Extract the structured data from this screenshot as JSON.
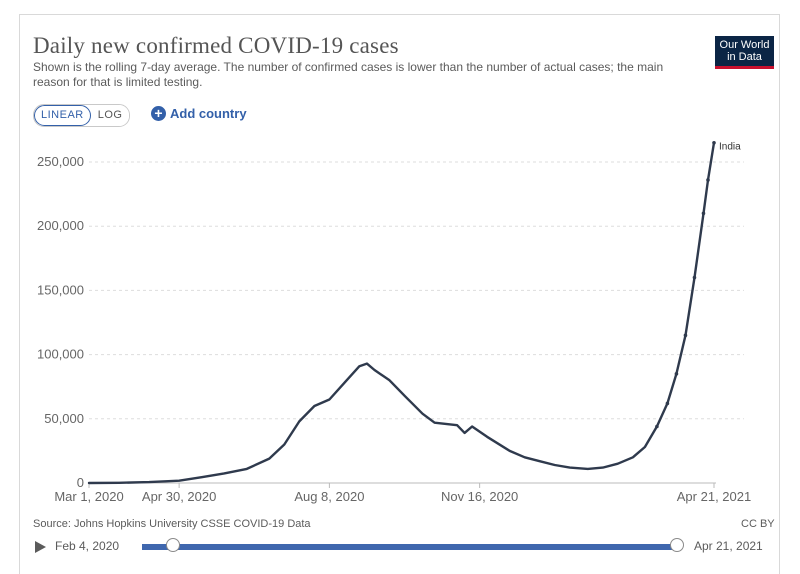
{
  "header": {
    "title": "Daily new confirmed COVID-19 cases",
    "subtitle": "Shown is the rolling 7-day average. The number of confirmed cases is lower than the number of actual cases; the main reason for that is limited testing.",
    "logo_line1": "Our World",
    "logo_line2": "in Data"
  },
  "controls": {
    "scale_linear": "LINEAR",
    "scale_log": "LOG",
    "active_scale": "LINEAR",
    "add_country": "Add country",
    "add_icon": "plus-circle-icon"
  },
  "footer": {
    "source": "Source: Johns Hopkins University CSSE COVID-19 Data",
    "license": "CC BY"
  },
  "timeline": {
    "start_label": "Feb 4, 2020",
    "end_label": "Apr 21, 2021"
  },
  "colors": {
    "line": "#2f3a4d",
    "accent": "#3360a9",
    "grid": "#dddddd",
    "logo_bg": "#0b2545",
    "logo_red": "#c8102e"
  },
  "chart_data": {
    "type": "line",
    "title": "Daily new confirmed COVID-19 cases",
    "xlabel": "",
    "ylabel": "",
    "x_tick_labels": [
      "Mar 1, 2020",
      "Apr 30, 2020",
      "Aug 8, 2020",
      "Nov 16, 2020",
      "Apr 21, 2021"
    ],
    "x_tick_days": [
      0,
      60,
      160,
      260,
      416
    ],
    "y_ticks": [
      0,
      50000,
      100000,
      150000,
      200000,
      250000
    ],
    "y_tick_labels": [
      "0",
      "50,000",
      "100,000",
      "150,000",
      "200,000",
      "250,000"
    ],
    "ylim": [
      0,
      250000
    ],
    "xlim_days": [
      0,
      416
    ],
    "x_unit": "days since Mar 1, 2020",
    "grid": "horizontal dashed",
    "series": [
      {
        "name": "India",
        "points": [
          [
            0,
            0
          ],
          [
            20,
            150
          ],
          [
            40,
            700
          ],
          [
            60,
            1800
          ],
          [
            75,
            4500
          ],
          [
            90,
            7500
          ],
          [
            105,
            11000
          ],
          [
            120,
            19000
          ],
          [
            130,
            30000
          ],
          [
            140,
            48000
          ],
          [
            150,
            60000
          ],
          [
            160,
            65000
          ],
          [
            170,
            78000
          ],
          [
            180,
            91000
          ],
          [
            185,
            93000
          ],
          [
            190,
            88000
          ],
          [
            200,
            80000
          ],
          [
            210,
            68000
          ],
          [
            222,
            54000
          ],
          [
            230,
            47000
          ],
          [
            245,
            45000
          ],
          [
            250,
            39000
          ],
          [
            255,
            44000
          ],
          [
            265,
            36000
          ],
          [
            280,
            25000
          ],
          [
            290,
            20000
          ],
          [
            300,
            17000
          ],
          [
            310,
            14000
          ],
          [
            320,
            12000
          ],
          [
            332,
            11000
          ],
          [
            342,
            12000
          ],
          [
            352,
            15000
          ],
          [
            362,
            20000
          ],
          [
            370,
            28000
          ],
          [
            378,
            44000
          ],
          [
            385,
            62000
          ],
          [
            391,
            85000
          ],
          [
            397,
            115000
          ],
          [
            403,
            160000
          ],
          [
            409,
            210000
          ],
          [
            412,
            236000
          ],
          [
            416,
            265000
          ]
        ]
      }
    ]
  }
}
